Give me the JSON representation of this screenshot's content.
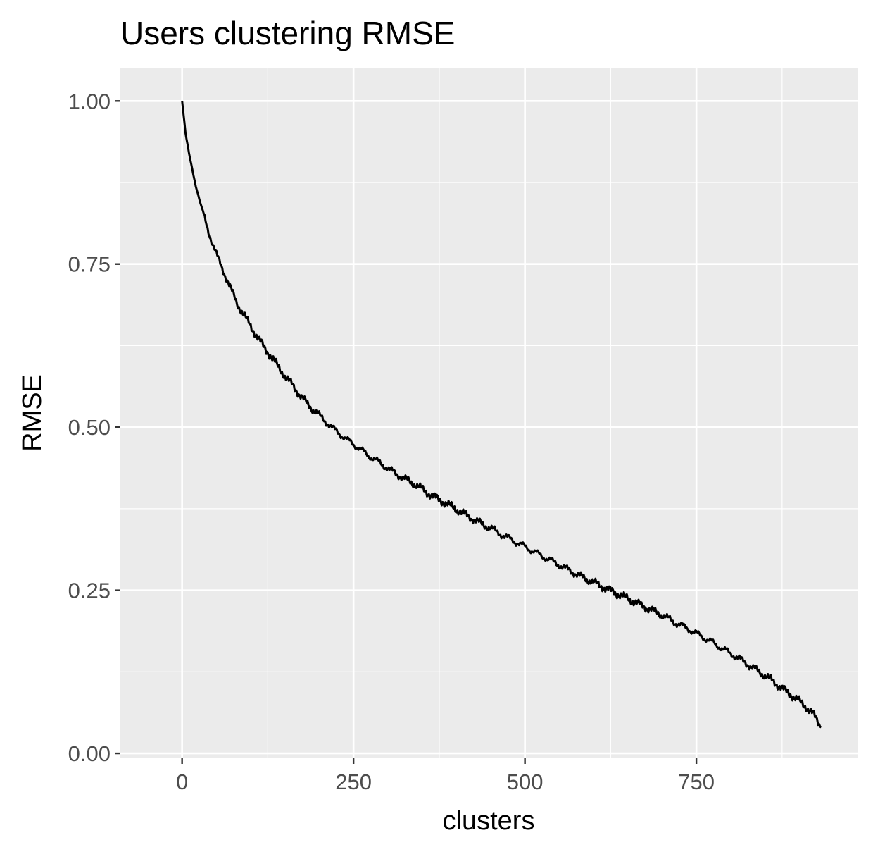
{
  "chart_data": {
    "type": "line",
    "title": "Users clustering RMSE",
    "xlabel": "clusters",
    "ylabel": "RMSE",
    "xlim": [
      -90,
      985
    ],
    "ylim": [
      -0.0075,
      1.05
    ],
    "x_ticks": [
      0,
      250,
      500,
      750
    ],
    "x_tick_labels": [
      "0",
      "250",
      "500",
      "750"
    ],
    "y_ticks": [
      0,
      0.25,
      0.5,
      0.75,
      1.0
    ],
    "y_tick_labels": [
      "0.00",
      "0.25",
      "0.50",
      "0.75",
      "1.00"
    ],
    "grid": true,
    "panel_background": "#ebebeb",
    "grid_color": "#ffffff",
    "line_color": "#000000",
    "series": [
      {
        "x": [
          0,
          5,
          10,
          15,
          20,
          25,
          30,
          40,
          50,
          60,
          70,
          80,
          90,
          100,
          110,
          120,
          130,
          140,
          150,
          160,
          170,
          180,
          190,
          200,
          210,
          220,
          230,
          240,
          250,
          260,
          270,
          280,
          290,
          300,
          310,
          320,
          330,
          340,
          350,
          360,
          370,
          380,
          390,
          400,
          410,
          420,
          430,
          440,
          450,
          460,
          470,
          480,
          490,
          500,
          510,
          520,
          530,
          540,
          550,
          560,
          570,
          580,
          590,
          600,
          610,
          620,
          630,
          640,
          650,
          660,
          670,
          680,
          690,
          700,
          710,
          720,
          730,
          740,
          750,
          760,
          770,
          780,
          790,
          800,
          810,
          820,
          830,
          840,
          850,
          860,
          870,
          880,
          890,
          900,
          910,
          920,
          932
        ],
        "y": [
          1.0,
          0.95,
          0.92,
          0.895,
          0.87,
          0.85,
          0.83,
          0.795,
          0.765,
          0.74,
          0.715,
          0.69,
          0.672,
          0.655,
          0.638,
          0.622,
          0.608,
          0.593,
          0.578,
          0.566,
          0.552,
          0.539,
          0.528,
          0.518,
          0.508,
          0.498,
          0.49,
          0.481,
          0.474,
          0.466,
          0.458,
          0.451,
          0.444,
          0.437,
          0.43,
          0.424,
          0.418,
          0.412,
          0.405,
          0.398,
          0.392,
          0.386,
          0.38,
          0.374,
          0.368,
          0.362,
          0.356,
          0.35,
          0.345,
          0.339,
          0.333,
          0.328,
          0.322,
          0.317,
          0.311,
          0.305,
          0.3,
          0.294,
          0.289,
          0.283,
          0.278,
          0.272,
          0.267,
          0.262,
          0.257,
          0.252,
          0.247,
          0.242,
          0.237,
          0.232,
          0.227,
          0.222,
          0.217,
          0.212,
          0.206,
          0.2,
          0.195,
          0.19,
          0.184,
          0.178,
          0.172,
          0.166,
          0.159,
          0.153,
          0.147,
          0.14,
          0.133,
          0.126,
          0.119,
          0.112,
          0.104,
          0.096,
          0.088,
          0.08,
          0.071,
          0.061,
          0.04
        ]
      }
    ]
  }
}
